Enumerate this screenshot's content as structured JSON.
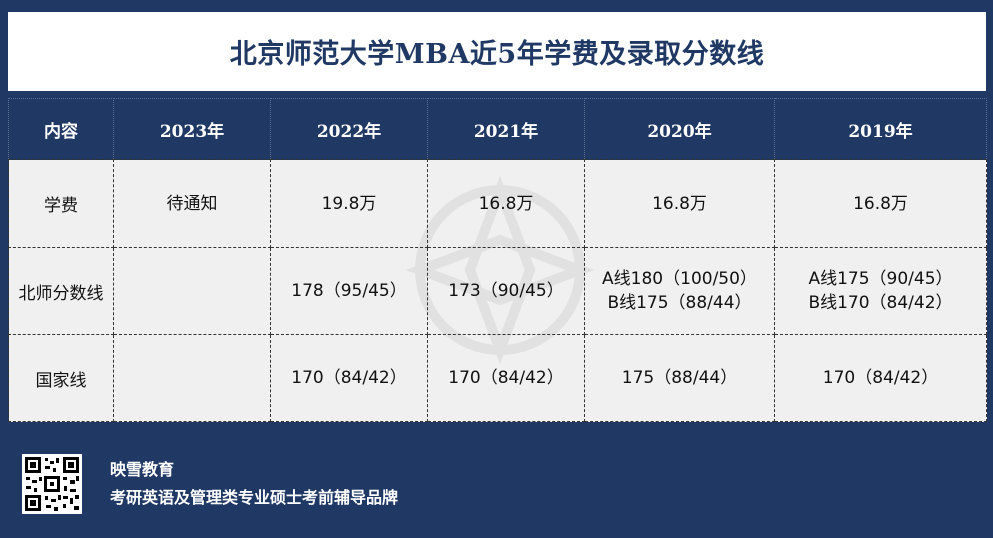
{
  "title": "北京师范大学MBA近5年学费及录取分数线",
  "table": {
    "headers": [
      "内容",
      "2023年",
      "2022年",
      "2021年",
      "2020年",
      "2019年"
    ],
    "rows": [
      {
        "label": "学费",
        "cells": [
          [
            "待通知"
          ],
          [
            "19.8万"
          ],
          [
            "16.8万"
          ],
          [
            "16.8万"
          ],
          [
            "16.8万"
          ]
        ]
      },
      {
        "label": "北师分数线",
        "cells": [
          [
            ""
          ],
          [
            "178（95/45）"
          ],
          [
            "173（90/45）"
          ],
          [
            "A线180（100/50）",
            "B线175（88/44）"
          ],
          [
            "A线175（90/45）",
            "B线170（84/42）"
          ]
        ]
      },
      {
        "label": "国家线",
        "cells": [
          [
            ""
          ],
          [
            "170（84/42）"
          ],
          [
            "170（84/42）"
          ],
          [
            "175（88/44）"
          ],
          [
            "170（84/42）"
          ]
        ]
      }
    ]
  },
  "footer": {
    "brand_name": "映雪教育",
    "slogan": "考研英语及管理类专业硕士考前辅导品牌",
    "qr_icon": "qr-code-icon"
  },
  "colors": {
    "navy": "#1f3864",
    "cell_bg": "#f0f0f0",
    "white": "#ffffff"
  }
}
